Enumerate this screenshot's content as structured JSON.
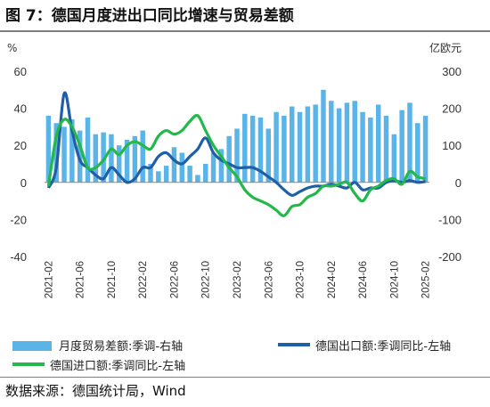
{
  "title": "图 7：德国月度进出口同比增速与贸易差额",
  "source": "数据来源：德国统计局，Wind",
  "colors": {
    "bar": "#5ab4e8",
    "export_line": "#1f5fa8",
    "import_line": "#22b84a",
    "zero_line": "#888888"
  },
  "chart_data": {
    "type": "bar+line",
    "left_axis_unit": "%",
    "right_axis_unit": "亿欧元",
    "left_ylim": [
      -40,
      60
    ],
    "left_ticks": [
      60,
      40,
      20,
      0,
      -20,
      -40
    ],
    "right_ylim": [
      -200,
      300
    ],
    "right_ticks": [
      300,
      200,
      100,
      0,
      -100,
      -200
    ],
    "x_tick_labels": [
      "2021-02",
      "2021-06",
      "2021-10",
      "2022-02",
      "2022-06",
      "2022-10",
      "2023-02",
      "2023-06",
      "2023-10",
      "2024-02",
      "2024-06",
      "2024-10",
      "2025-02"
    ],
    "x": [
      "2021-02",
      "2021-03",
      "2021-04",
      "2021-05",
      "2021-06",
      "2021-07",
      "2021-08",
      "2021-09",
      "2021-10",
      "2021-11",
      "2021-12",
      "2022-01",
      "2022-02",
      "2022-03",
      "2022-04",
      "2022-05",
      "2022-06",
      "2022-07",
      "2022-08",
      "2022-09",
      "2022-10",
      "2022-11",
      "2022-12",
      "2023-01",
      "2023-02",
      "2023-03",
      "2023-04",
      "2023-05",
      "2023-06",
      "2023-07",
      "2023-08",
      "2023-09",
      "2023-10",
      "2023-11",
      "2023-12",
      "2024-01",
      "2024-02",
      "2024-03",
      "2024-04",
      "2024-05",
      "2024-06",
      "2024-07",
      "2024-08",
      "2024-09",
      "2024-10",
      "2024-11",
      "2024-12",
      "2025-01",
      "2025-02"
    ],
    "series": [
      {
        "name": "月度贸易差额:季调-右轴",
        "type": "bar",
        "axis": "right",
        "values": [
          180,
          160,
          150,
          170,
          140,
          175,
          130,
          135,
          130,
          100,
          115,
          125,
          140,
          50,
          30,
          45,
          95,
          80,
          45,
          20,
          50,
          80,
          90,
          125,
          145,
          185,
          180,
          175,
          145,
          190,
          180,
          205,
          190,
          205,
          210,
          250,
          220,
          200,
          215,
          220,
          190,
          175,
          210,
          180,
          130,
          195,
          215,
          160,
          180
        ]
      },
      {
        "name": "德国出口额:季调同比-左轴",
        "type": "line",
        "axis": "left",
        "values": [
          -3,
          8,
          48,
          28,
          12,
          8,
          4,
          2,
          8,
          4,
          0,
          2,
          8,
          8,
          14,
          16,
          12,
          10,
          14,
          18,
          24,
          16,
          12,
          10,
          8,
          8,
          8,
          6,
          3,
          0,
          -4,
          -7,
          -5,
          -3,
          -2,
          -2,
          -1,
          -2,
          -3,
          0,
          -4,
          -3,
          -3,
          0,
          1,
          0,
          1,
          0,
          0.5
        ]
      },
      {
        "name": "德国进口额:季调同比-左轴",
        "type": "line",
        "axis": "left",
        "values": [
          -2,
          25,
          34,
          30,
          20,
          8,
          8,
          12,
          18,
          15,
          20,
          22,
          20,
          18,
          25,
          28,
          26,
          28,
          33,
          36,
          28,
          20,
          14,
          8,
          3,
          -4,
          -8,
          -10,
          -12,
          -15,
          -18,
          -13,
          -12,
          -8,
          -6,
          -2,
          -2,
          -1,
          0,
          -6,
          -10,
          -4,
          -2,
          1,
          2,
          -1,
          6,
          3,
          2
        ]
      }
    ]
  }
}
